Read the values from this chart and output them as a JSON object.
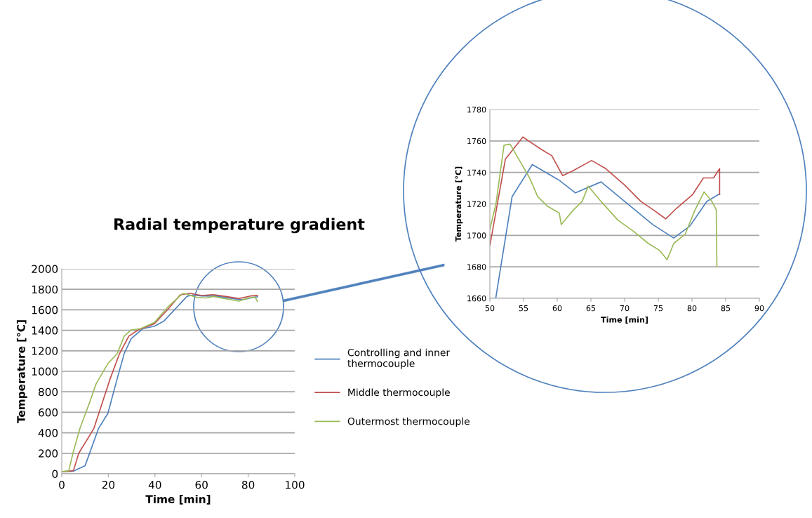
{
  "chart_data": [
    {
      "type": "line",
      "title": "Radial temperature gradient",
      "xlabel": "Time [min]",
      "ylabel": "Temperature [°C]",
      "xlim": [
        0,
        100
      ],
      "xticks": [
        0,
        20,
        40,
        60,
        80,
        100
      ],
      "ylim": [
        0,
        2000
      ],
      "yticks": [
        0,
        200,
        400,
        600,
        800,
        1000,
        1200,
        1400,
        1600,
        1800,
        2000
      ],
      "grid": "y",
      "legend": "right",
      "marker": "none",
      "line_style": "solid",
      "series": [
        {
          "name": "Controlling and inner thermocouple",
          "color": "#4f81bd",
          "x": [
            0,
            5,
            10,
            15.8,
            19.8,
            23.8,
            26.8,
            29.8,
            34.8,
            39.8,
            43.8,
            49.8,
            53.8,
            56.3,
            60,
            66.5,
            70,
            77.3,
            82.2,
            84
          ],
          "values": [
            20,
            25,
            78,
            443,
            589,
            929,
            1173,
            1319,
            1416,
            1440,
            1489,
            1635,
            1732,
            1745,
            1735,
            1734,
            1722,
            1698,
            1722,
            1726
          ]
        },
        {
          "name": "Middle thermocouple",
          "color": "#c0504d",
          "x": [
            0,
            5,
            7.3,
            13.8,
            17.3,
            20.8,
            24.8,
            28.8,
            32.8,
            39.8,
            45.8,
            50.8,
            54.9,
            60,
            65,
            70,
            76,
            81,
            84
          ],
          "values": [
            20,
            30,
            200,
            443,
            686,
            929,
            1173,
            1343,
            1404,
            1465,
            1611,
            1745,
            1762,
            1740,
            1748,
            1732,
            1710,
            1735,
            1740
          ]
        },
        {
          "name": "Outermost thermocouple",
          "color": "#9bbb59",
          "x": [
            0,
            3,
            4.8,
            7.8,
            11.8,
            14.8,
            19.8,
            23.8,
            26.8,
            29.8,
            33.8,
            39.8,
            45.8,
            51.8,
            53,
            58,
            62,
            65,
            70,
            76,
            80,
            83,
            84
          ],
          "values": [
            20,
            30,
            200,
            443,
            686,
            881,
            1075,
            1173,
            1343,
            1404,
            1416,
            1477,
            1635,
            1757,
            1758,
            1720,
            1716,
            1730,
            1710,
            1685,
            1715,
            1724,
            1680
          ]
        }
      ]
    },
    {
      "type": "line",
      "xlabel": "Time [min]",
      "ylabel": "Temperature [°C]",
      "xlim": [
        50,
        90
      ],
      "xticks": [
        50,
        55,
        60,
        65,
        70,
        75,
        80,
        85,
        90
      ],
      "ylim": [
        1660,
        1780
      ],
      "yticks": [
        1660,
        1680,
        1700,
        1720,
        1740,
        1760,
        1780
      ],
      "grid": "y",
      "marker": "none",
      "line_style": "solid",
      "series": [
        {
          "color": "#4f81bd",
          "x": [
            50.87,
            53.3,
            56.3,
            60.3,
            62.7,
            66.5,
            70,
            74.2,
            77.3,
            79.7,
            82.2,
            84.1
          ],
          "values": [
            1660,
            1724.6,
            1745,
            1735,
            1727,
            1734,
            1721.6,
            1706.8,
            1698.3,
            1706,
            1721.6,
            1726.4
          ]
        },
        {
          "color": "#c0504d",
          "x": [
            50,
            52.3,
            54.9,
            57.5,
            59.2,
            60.8,
            62.3,
            65.1,
            67.2,
            70,
            72.4,
            74.2,
            76.1,
            77.7,
            80.1,
            81.7,
            83.2,
            84.1,
            84.1
          ],
          "values": [
            1693.4,
            1748.4,
            1762.5,
            1755,
            1750.6,
            1738,
            1741,
            1747.6,
            1742.4,
            1732,
            1721.6,
            1716.4,
            1710.5,
            1717.2,
            1726,
            1736.5,
            1736.5,
            1742.4,
            1726
          ]
        },
        {
          "color": "#9bbb59",
          "x": [
            50,
            50.9,
            52.1,
            53,
            54.7,
            55.9,
            57.1,
            58.5,
            60.3,
            60.6,
            62.3,
            63.7,
            64.6,
            66.5,
            69,
            71.4,
            73.5,
            75.2,
            76.3,
            77.3,
            79,
            80.4,
            81.8,
            82.9,
            83.6,
            83.7
          ],
          "values": [
            1703.8,
            1720,
            1757.3,
            1758,
            1745.4,
            1736.5,
            1724.6,
            1718.7,
            1714.2,
            1706.8,
            1715.7,
            1721.6,
            1731.3,
            1721.6,
            1709.7,
            1702.3,
            1694.9,
            1690.4,
            1684.5,
            1694.9,
            1700.8,
            1715.7,
            1727.6,
            1722,
            1716.3,
            1680
          ]
        }
      ]
    }
  ]
}
